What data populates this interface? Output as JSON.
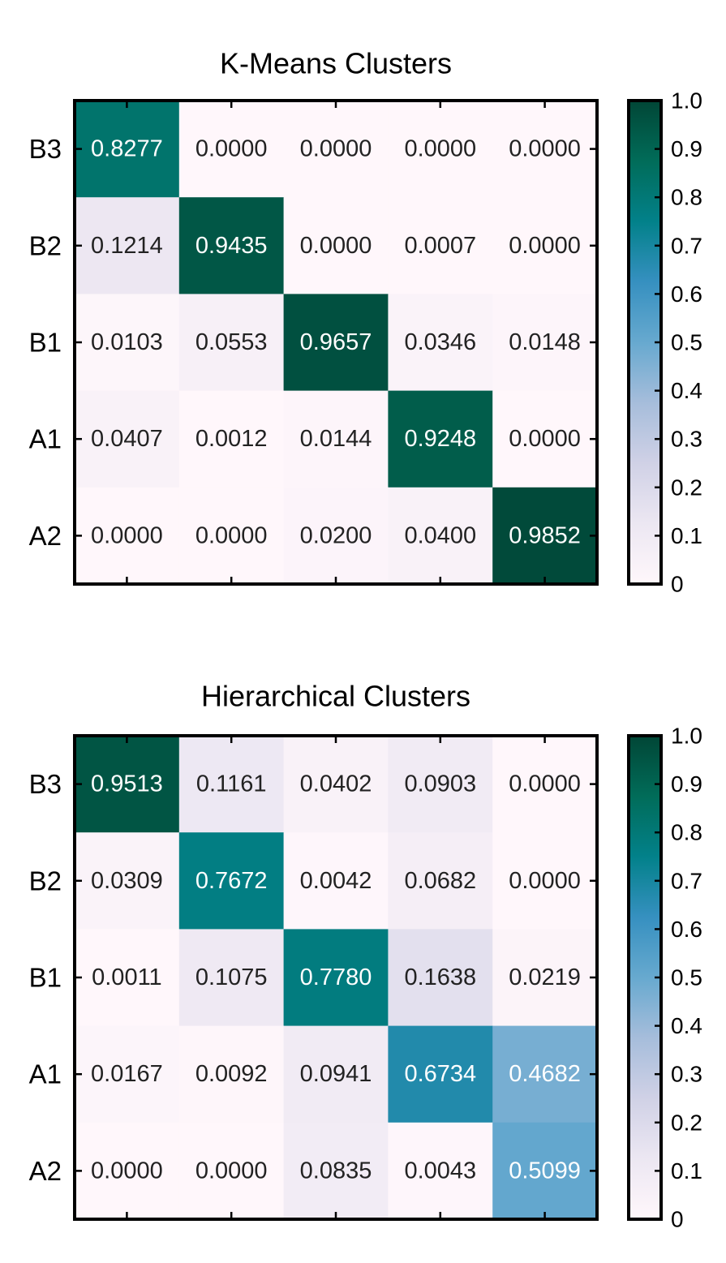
{
  "chart_data": [
    {
      "type": "heatmap",
      "title": "K-Means Clusters",
      "rows": [
        "B3",
        "B2",
        "B1",
        "A1",
        "A2"
      ],
      "values": [
        [
          0.8277,
          0.0,
          0.0,
          0.0,
          0.0
        ],
        [
          0.1214,
          0.9435,
          0.0,
          0.0007,
          0.0
        ],
        [
          0.0103,
          0.0553,
          0.9657,
          0.0346,
          0.0148
        ],
        [
          0.0407,
          0.0012,
          0.0144,
          0.9248,
          0.0
        ],
        [
          0.0,
          0.0,
          0.02,
          0.04,
          0.9852
        ]
      ],
      "labels": [
        [
          "0.8277",
          "0.0000",
          "0.0000",
          "0.0000",
          "0.0000"
        ],
        [
          "0.1214",
          "0.9435",
          "0.0000",
          "0.0007",
          "0.0000"
        ],
        [
          "0.0103",
          "0.0553",
          "0.9657",
          "0.0346",
          "0.0148"
        ],
        [
          "0.0407",
          "0.0012",
          "0.0144",
          "0.9248",
          "0.0000"
        ],
        [
          "0.0000",
          "0.0000",
          "0.0200",
          "0.0400",
          "0.9852"
        ]
      ],
      "colorbar": {
        "range": [
          0,
          1.0
        ],
        "ticks": [
          "0",
          "0.1",
          "0.2",
          "0.3",
          "0.4",
          "0.5",
          "0.6",
          "0.7",
          "0.8",
          "0.9",
          "1.0"
        ]
      },
      "colormap": "PuBuGn"
    },
    {
      "type": "heatmap",
      "title": "Hierarchical Clusters",
      "rows": [
        "B3",
        "B2",
        "B1",
        "A1",
        "A2"
      ],
      "values": [
        [
          0.9513,
          0.1161,
          0.0402,
          0.0903,
          0.0
        ],
        [
          0.0309,
          0.7672,
          0.0042,
          0.0682,
          0.0
        ],
        [
          0.0011,
          0.1075,
          0.778,
          0.1638,
          0.0219
        ],
        [
          0.0167,
          0.0092,
          0.0941,
          0.6734,
          0.4682
        ],
        [
          0.0,
          0.0,
          0.0835,
          0.0043,
          0.5099
        ]
      ],
      "labels": [
        [
          "0.9513",
          "0.1161",
          "0.0402",
          "0.0903",
          "0.0000"
        ],
        [
          "0.0309",
          "0.7672",
          "0.0042",
          "0.0682",
          "0.0000"
        ],
        [
          "0.0011",
          "0.1075",
          "0.7780",
          "0.1638",
          "0.0219"
        ],
        [
          "0.0167",
          "0.0092",
          "0.0941",
          "0.6734",
          "0.4682"
        ],
        [
          "0.0000",
          "0.0000",
          "0.0835",
          "0.0043",
          "0.5099"
        ]
      ],
      "colorbar": {
        "range": [
          0,
          1.0
        ],
        "ticks": [
          "0",
          "0.1",
          "0.2",
          "0.3",
          "0.4",
          "0.5",
          "0.6",
          "0.7",
          "0.8",
          "0.9",
          "1.0"
        ]
      },
      "colormap": "PuBuGn"
    }
  ],
  "colors": {
    "frame": "#000000",
    "light_text": "#ffffff",
    "dark_text": "#222222",
    "colormap_stops": [
      "#fff7fb",
      "#ece7f2",
      "#d0d1e6",
      "#a6bddb",
      "#67a9cf",
      "#3690c0",
      "#02818a",
      "#016c59",
      "#014636"
    ]
  }
}
